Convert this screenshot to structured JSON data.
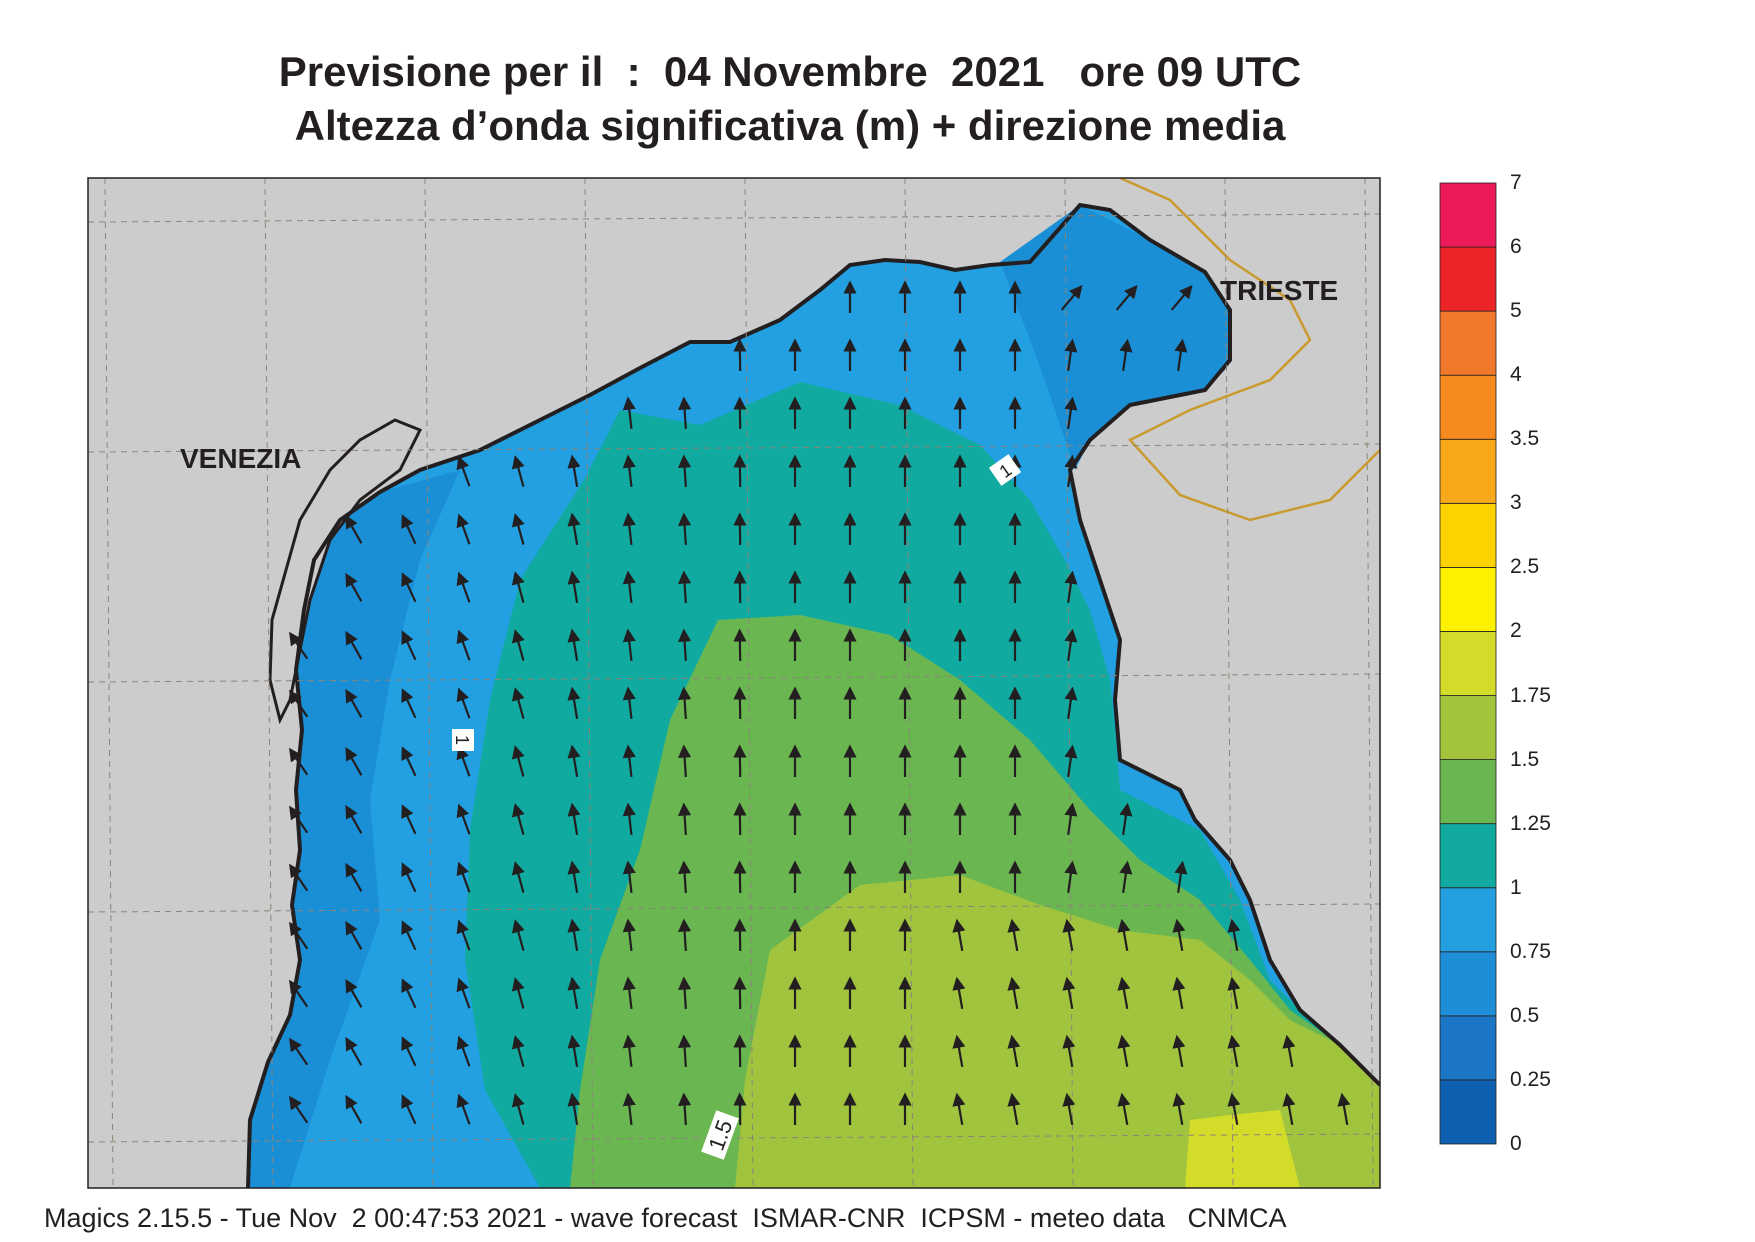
{
  "title": {
    "line1": "Previsione per il  :  04 Novembre  2021   ore 09 UTC",
    "line2": "Altezza d’onda significativa (m) + direzione media"
  },
  "places": [
    {
      "name": "VENEZIA"
    },
    {
      "name": "TRIESTE"
    }
  ],
  "contour_labels": [
    "1",
    "1",
    "1.5"
  ],
  "colorbar": {
    "bounds": [
      "0",
      "0.25",
      "0.5",
      "0.75",
      "1",
      "1.25",
      "1.5",
      "1.75",
      "2",
      "2.5",
      "3",
      "3.5",
      "4",
      "5",
      "6",
      "7"
    ],
    "colors": [
      "#0f5fb0",
      "#1b76c6",
      "#1f8ed8",
      "#239fe0",
      "#12aaa0",
      "#6ab752",
      "#a2c43d",
      "#d4dc2a",
      "#fff200",
      "#fcd200",
      "#f7a81b",
      "#f58b1f",
      "#f0782a",
      "#ec2428",
      "#ec1a58"
    ]
  },
  "map": {
    "sea_colors": {
      "lt_0_5": "#1978c8",
      "0_5_to_0_75": "#1b8fd6",
      "0_75_to_1": "#23a0e2",
      "1_to_1_25": "#11aaa0",
      "1_25_to_1_5": "#6ab752",
      "1_5_to_1_75": "#a0c43e",
      "1_75_to_2": "#d4dc2a"
    },
    "land_color": "#cccccc",
    "coast_color": "#231f20",
    "border_color": "#c99a2e",
    "grid": true,
    "arrow_direction": "mostly northward (waves heading N / NW)"
  },
  "footer": "Magics 2.15.5 - Tue Nov  2 00:47:53 2021 - wave forecast  ISMAR-CNR  ICPSM - meteo data   CNMCA"
}
